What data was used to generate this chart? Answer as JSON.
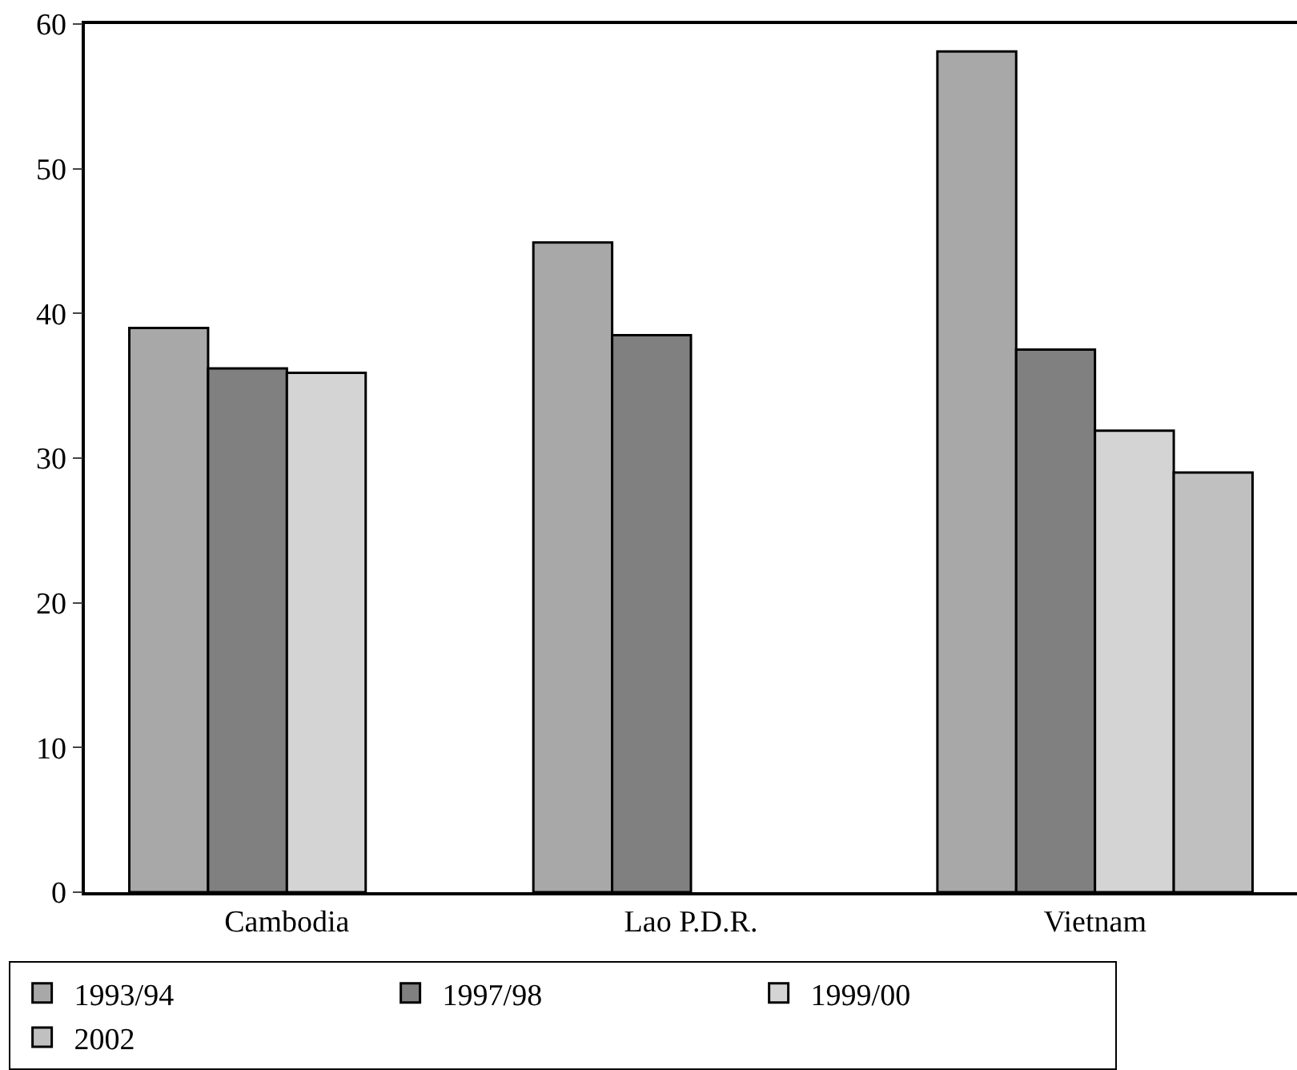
{
  "chart_data": {
    "type": "bar",
    "categories": [
      "Cambodia",
      "Lao P.D.R.",
      "Vietnam"
    ],
    "series": [
      {
        "name": "1993/94",
        "color": "#a8a8a8",
        "values": [
          39.0,
          44.9,
          58.1
        ]
      },
      {
        "name": "1997/98",
        "color": "#808080",
        "values": [
          36.2,
          38.5,
          37.5
        ]
      },
      {
        "name": "1999/00",
        "color": "#d4d4d4",
        "values": [
          35.9,
          null,
          31.9
        ]
      },
      {
        "name": "2002",
        "color": "#c0c0c0",
        "values": [
          null,
          null,
          29.0
        ]
      }
    ],
    "ylim": [
      0,
      60
    ],
    "yticks": [
      0,
      10,
      20,
      30,
      40,
      50,
      60
    ],
    "legend": "bottom"
  }
}
